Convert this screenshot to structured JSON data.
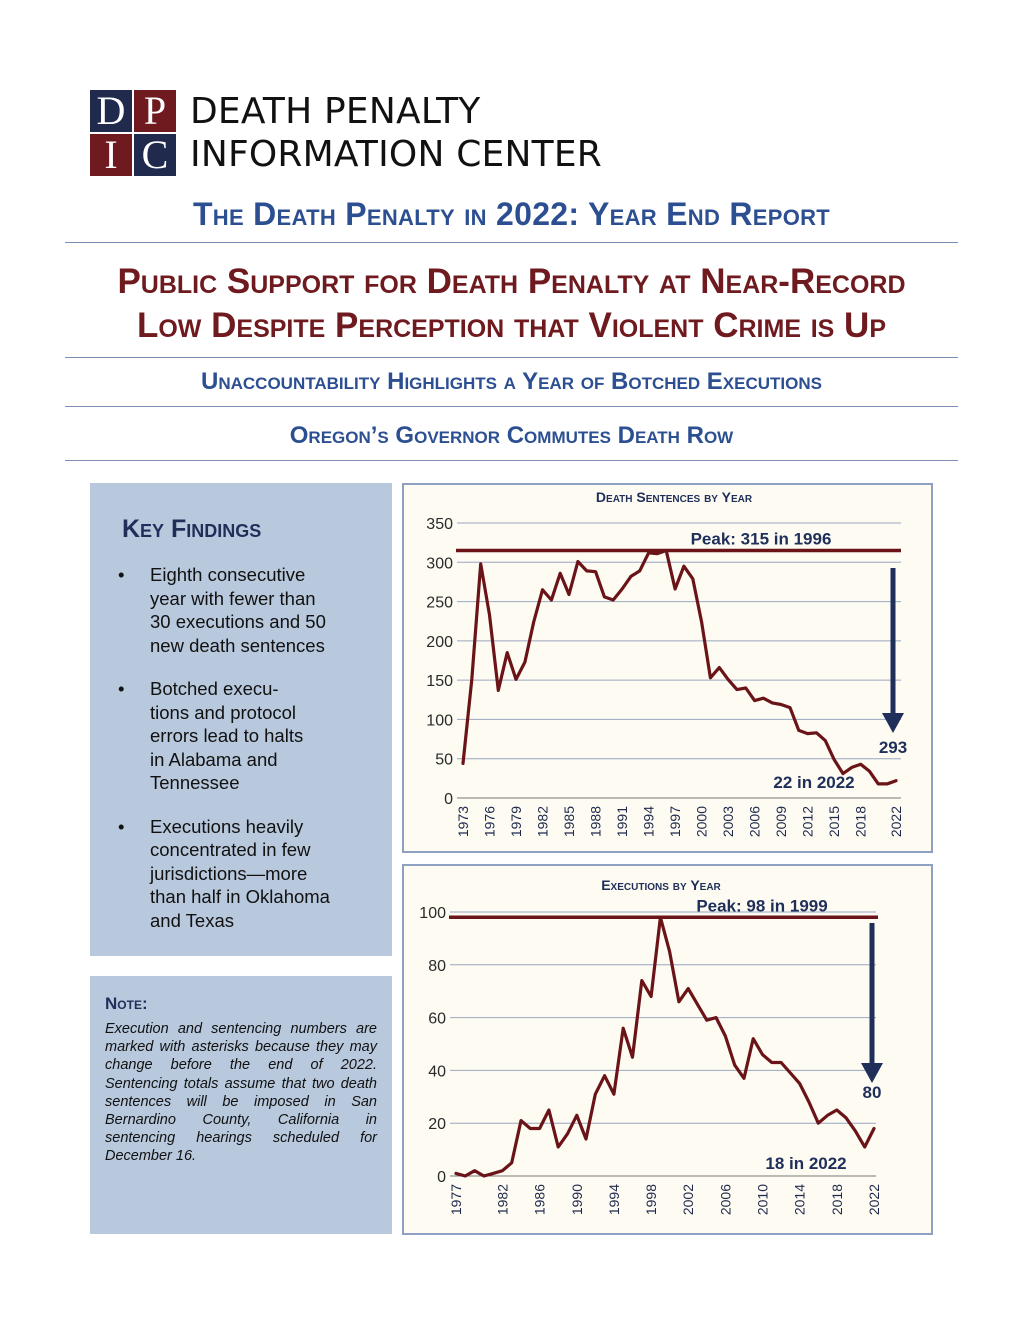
{
  "logo": {
    "letters": [
      "D",
      "P",
      "I",
      "C"
    ],
    "line1": "DEATH PENALTY",
    "line2": "INFORMATION CENTER"
  },
  "report_title": "The Death Penalty in 2022: Year End Report",
  "headline": {
    "line1": "Public Support for Death Penalty at Near-Record",
    "line2": "Low Despite Perception that Violent Crime is Up"
  },
  "subhead1": "Unaccountability Highlights a Year of Botched Executions",
  "subhead2": "Oregon’s Governor Commutes Death Row",
  "key_findings": {
    "title": "Key Findings",
    "bullet": "•",
    "items": [
      [
        "Eighth consecutive",
        "year with fewer than",
        "30 executions and 50",
        "new death sentences"
      ],
      [
        "Botched execu-",
        "tions and protocol",
        "errors lead to halts",
        "in Alabama and",
        "Tennessee"
      ],
      [
        "Executions heavily",
        "concentrated in few",
        "jurisdictions—more",
        "than half in Oklahoma",
        "and Texas"
      ]
    ]
  },
  "note": {
    "title": "Note:",
    "text": "Execution and sentencing numbers are marked with asterisks because they may change before the end of 2022. Sentencing totals assume that two death sentences will be imposed in San Bernardino County, California in sentencing hearings scheduled for December 16."
  },
  "colors": {
    "navy": "#1f2a4d",
    "brand_red": "#6e1a1f",
    "blue_heading": "#2c4f92",
    "line": "#6b1418",
    "arrow": "#1f2f5a",
    "panel": "#b8c8dd"
  },
  "chart_data": [
    {
      "type": "line",
      "title": "Death Sentences by Year",
      "xlabel": "",
      "ylabel": "",
      "ylim": [
        0,
        350
      ],
      "yticks": [
        0,
        50,
        100,
        150,
        200,
        250,
        300,
        350
      ],
      "xticks": [
        1973,
        1976,
        1979,
        1982,
        1985,
        1988,
        1991,
        1994,
        1997,
        2000,
        2003,
        2006,
        2009,
        2012,
        2015,
        2018,
        2022
      ],
      "grid": true,
      "x": [
        1973,
        1974,
        1975,
        1976,
        1977,
        1978,
        1979,
        1980,
        1981,
        1982,
        1983,
        1984,
        1985,
        1986,
        1987,
        1988,
        1989,
        1990,
        1991,
        1992,
        1993,
        1994,
        1995,
        1996,
        1997,
        1998,
        1999,
        2000,
        2001,
        2002,
        2003,
        2004,
        2005,
        2006,
        2007,
        2008,
        2009,
        2010,
        2011,
        2012,
        2013,
        2014,
        2015,
        2016,
        2017,
        2018,
        2019,
        2020,
        2021,
        2022
      ],
      "values": [
        44,
        151,
        298,
        233,
        137,
        185,
        151,
        173,
        224,
        265,
        252,
        286,
        259,
        301,
        289,
        288,
        256,
        252,
        266,
        282,
        289,
        312,
        311,
        315,
        266,
        295,
        279,
        224,
        153,
        166,
        151,
        138,
        140,
        124,
        127,
        121,
        119,
        115,
        86,
        82,
        83,
        73,
        49,
        31,
        39,
        43,
        34,
        18,
        18,
        22
      ],
      "peak_value": 315,
      "peak_label": "Peak: 315 in 1996",
      "drop_label": "293",
      "end_label": "22 in 2022"
    },
    {
      "type": "line",
      "title": "Executions by Year",
      "xlabel": "",
      "ylabel": "",
      "ylim": [
        0,
        100
      ],
      "yticks": [
        0,
        20,
        40,
        60,
        80,
        100
      ],
      "xticks": [
        1977,
        1982,
        1986,
        1990,
        1994,
        1998,
        2002,
        2006,
        2010,
        2014,
        2018,
        2022
      ],
      "grid": true,
      "x": [
        1977,
        1978,
        1979,
        1980,
        1981,
        1982,
        1983,
        1984,
        1985,
        1986,
        1987,
        1988,
        1989,
        1990,
        1991,
        1992,
        1993,
        1994,
        1995,
        1996,
        1997,
        1998,
        1999,
        2000,
        2001,
        2002,
        2003,
        2004,
        2005,
        2006,
        2007,
        2008,
        2009,
        2010,
        2011,
        2012,
        2013,
        2014,
        2015,
        2016,
        2017,
        2018,
        2019,
        2020,
        2021,
        2022
      ],
      "values": [
        1,
        0,
        2,
        0,
        1,
        2,
        5,
        21,
        18,
        18,
        25,
        11,
        16,
        23,
        14,
        31,
        38,
        31,
        56,
        45,
        74,
        68,
        98,
        85,
        66,
        71,
        65,
        59,
        60,
        53,
        42,
        37,
        52,
        46,
        43,
        43,
        39,
        35,
        28,
        20,
        23,
        25,
        22,
        17,
        11,
        18
      ],
      "peak_value": 98,
      "peak_label": "Peak: 98 in 1999",
      "drop_label": "80",
      "end_label": "18 in 2022"
    }
  ]
}
